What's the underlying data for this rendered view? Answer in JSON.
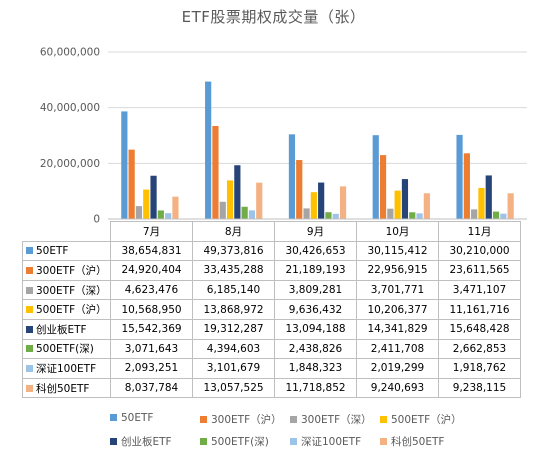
{
  "chart_data": {
    "type": "bar",
    "title": "ETF股票期权成交量（张）",
    "categories": [
      "7月",
      "8月",
      "9月",
      "10月",
      "11月"
    ],
    "yticks": [
      "0",
      "20,000,000",
      "40,000,000",
      "60,000,000"
    ],
    "ylim": [
      0,
      60000000
    ],
    "grid": true,
    "legend_position": "bottom",
    "series": [
      {
        "name": "50ETF",
        "color": "#5b9bd5",
        "values": [
          38654831,
          49373816,
          30426653,
          30115412,
          30210000
        ],
        "labels": [
          "38,654,831",
          "49,373,816",
          "30,426,653",
          "30,115,412",
          "30,210,000"
        ]
      },
      {
        "name": "300ETF（沪）",
        "color": "#ed7d31",
        "values": [
          24920404,
          33435288,
          21189193,
          22956915,
          23611565
        ],
        "labels": [
          "24,920,404",
          "33,435,288",
          "21,189,193",
          "22,956,915",
          "23,611,565"
        ]
      },
      {
        "name": "300ETF（深）",
        "color": "#a5a5a5",
        "values": [
          4623476,
          6185140,
          3809281,
          3701771,
          3471107
        ],
        "labels": [
          "4,623,476",
          "6,185,140",
          "3,809,281",
          "3,701,771",
          "3,471,107"
        ]
      },
      {
        "name": "500ETF（沪）",
        "color": "#ffc000",
        "values": [
          10568950,
          13868972,
          9636432,
          10206377,
          11161716
        ],
        "labels": [
          "10,568,950",
          "13,868,972",
          "9,636,432",
          "10,206,377",
          "11,161,716"
        ]
      },
      {
        "name": "创业板ETF",
        "color": "#264478",
        "values": [
          15542369,
          19312287,
          13094188,
          14341829,
          15648428
        ],
        "labels": [
          "15,542,369",
          "19,312,287",
          "13,094,188",
          "14,341,829",
          "15,648,428"
        ]
      },
      {
        "name": "500ETF(深)",
        "color": "#70ad47",
        "values": [
          3071643,
          4394603,
          2438826,
          2411708,
          2662853
        ],
        "labels": [
          "3,071,643",
          "4,394,603",
          "2,438,826",
          "2,411,708",
          "2,662,853"
        ]
      },
      {
        "name": "深证100ETF",
        "color": "#9dc3e6",
        "values": [
          2093251,
          3101679,
          1848323,
          2019299,
          1918762
        ],
        "labels": [
          "2,093,251",
          "3,101,679",
          "1,848,323",
          "2,019,299",
          "1,918,762"
        ]
      },
      {
        "name": "科创50ETF",
        "color": "#f4b183",
        "values": [
          8037784,
          13057525,
          11718852,
          9240693,
          9238115
        ],
        "labels": [
          "8,037,784",
          "13,057,525",
          "11,718,852",
          "9,240,693",
          "9,238,115"
        ]
      }
    ]
  }
}
